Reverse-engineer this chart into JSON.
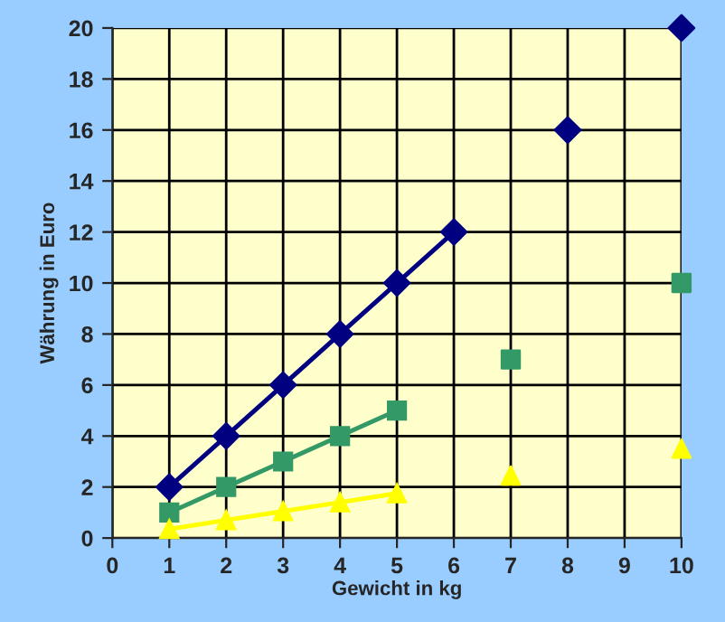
{
  "chart_data": {
    "type": "line",
    "xlabel": "Gewicht in kg",
    "ylabel": "Währung in Euro",
    "xlim": [
      0,
      10
    ],
    "ylim": [
      0,
      20
    ],
    "xticks": [
      0,
      1,
      2,
      3,
      4,
      5,
      6,
      7,
      8,
      9,
      10
    ],
    "yticks": [
      0,
      2,
      4,
      6,
      8,
      10,
      12,
      14,
      16,
      18,
      20
    ],
    "grid": true,
    "legend": false,
    "series": [
      {
        "marker": "diamond",
        "color": "#000080",
        "x": [
          1,
          2,
          3,
          4,
          5,
          6
        ],
        "values": [
          2,
          4,
          6,
          8,
          10,
          12
        ]
      },
      {
        "type": "scatter",
        "marker": "diamond",
        "color": "#000080",
        "x": [
          8,
          10
        ],
        "values": [
          16,
          20
        ]
      },
      {
        "marker": "square",
        "color": "#339966",
        "x": [
          1,
          2,
          3,
          4,
          5
        ],
        "values": [
          1,
          2,
          3,
          4,
          5
        ]
      },
      {
        "type": "scatter",
        "marker": "square",
        "color": "#339966",
        "x": [
          7,
          10
        ],
        "values": [
          7,
          10
        ]
      },
      {
        "marker": "triangle",
        "color": "#ffff00",
        "x": [
          1,
          2,
          3,
          4,
          5
        ],
        "values": [
          0.35,
          0.7,
          1.05,
          1.4,
          1.75
        ]
      },
      {
        "type": "scatter",
        "marker": "triangle",
        "color": "#ffff00",
        "x": [
          7,
          10
        ],
        "values": [
          2.45,
          3.5
        ]
      }
    ]
  }
}
